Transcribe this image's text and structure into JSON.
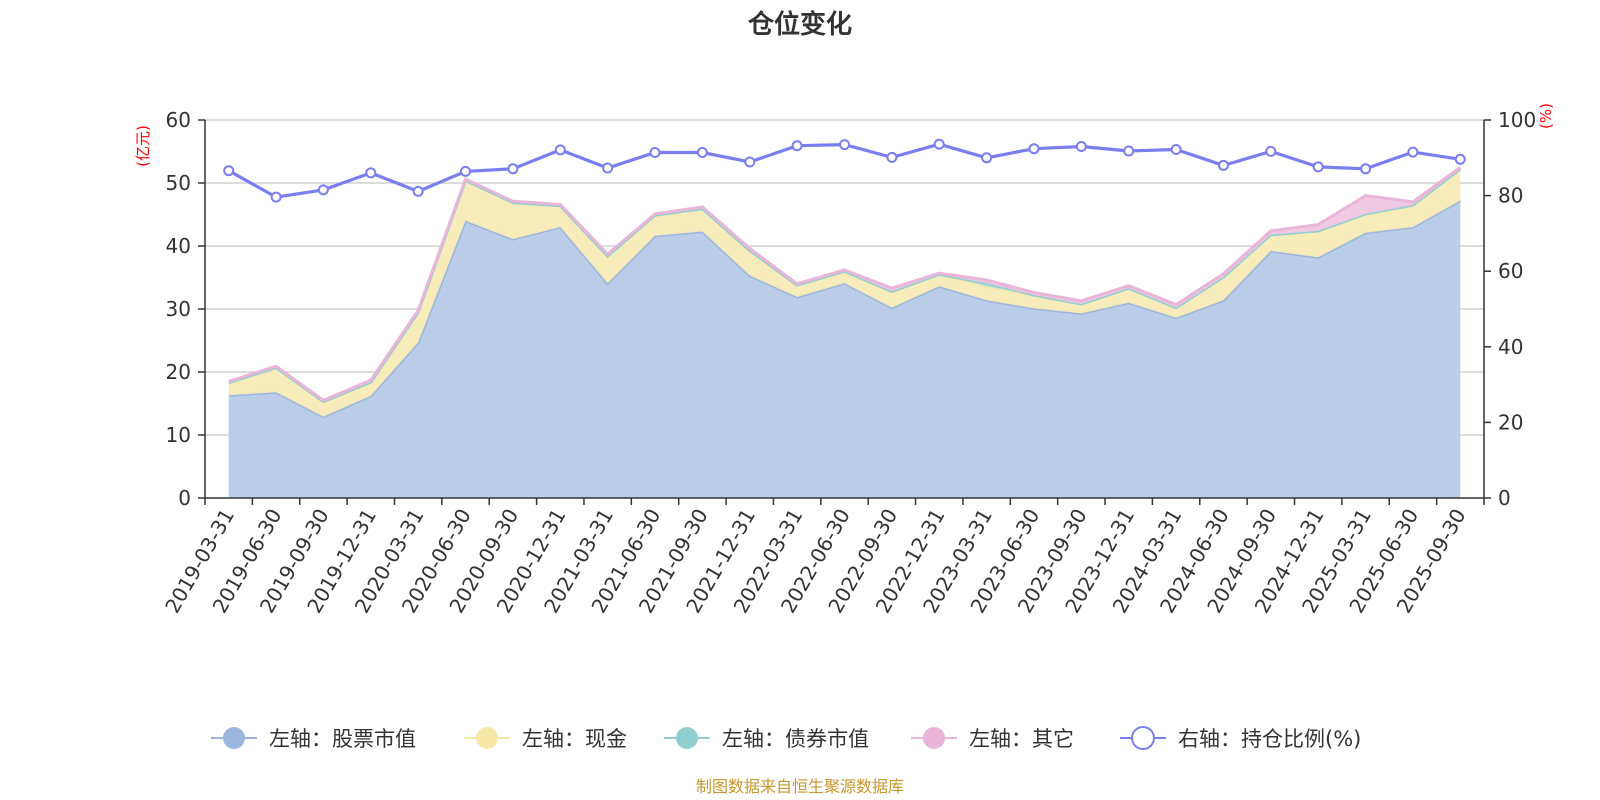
{
  "chart_data": {
    "type": "area",
    "title": "仓位变化",
    "left_axis": {
      "unit": "(亿元)",
      "ylim": [
        0,
        60
      ],
      "ticks": [
        "0",
        "10",
        "20",
        "30",
        "40",
        "50",
        "60"
      ]
    },
    "right_axis": {
      "unit": "(%)",
      "ylim": [
        0,
        100
      ],
      "ticks": [
        "0",
        "20",
        "40",
        "60",
        "80",
        "100"
      ]
    },
    "x": [
      "2019-03-31",
      "2019-06-30",
      "2019-09-30",
      "2019-12-31",
      "2020-03-31",
      "2020-06-30",
      "2020-09-30",
      "2020-12-31",
      "2021-03-31",
      "2021-06-30",
      "2021-09-30",
      "2021-12-31",
      "2022-03-31",
      "2022-06-30",
      "2022-09-30",
      "2022-12-31",
      "2023-03-31",
      "2023-06-30",
      "2023-09-30",
      "2023-12-31",
      "2024-03-31",
      "2024-06-30",
      "2024-09-30",
      "2024-12-31",
      "2025-03-31",
      "2025-06-30",
      "2025-09-30"
    ],
    "grid": true,
    "legend_position": "bottom",
    "series": [
      {
        "name": "左轴：股票市值",
        "axis": "left",
        "kind": "area",
        "color": "#9bb5de",
        "fill": "#b7cbe8",
        "values": [
          16.3,
          16.8,
          12.9,
          16.2,
          24.7,
          44.0,
          41.1,
          43.0,
          34.1,
          41.6,
          42.3,
          35.3,
          31.9,
          34.1,
          30.2,
          33.6,
          31.4,
          30.1,
          29.3,
          31.0,
          28.6,
          31.4,
          39.2,
          38.2,
          42.1,
          43.0,
          47.2
        ]
      },
      {
        "name": "左轴：现金",
        "axis": "left",
        "kind": "area",
        "color": "#f6e7a6",
        "fill": "#f8ebb7",
        "values": [
          2.0,
          3.9,
          2.4,
          2.2,
          4.8,
          6.4,
          5.8,
          3.4,
          4.3,
          3.3,
          3.6,
          4.0,
          1.9,
          1.9,
          2.6,
          1.9,
          2.2,
          2.1,
          1.5,
          2.3,
          1.6,
          3.7,
          2.6,
          4.2,
          3.0,
          3.5,
          5.0
        ]
      },
      {
        "name": "左轴：债券市值",
        "axis": "left",
        "kind": "area",
        "color": "#8fcfcf",
        "fill": "#a9dcdc",
        "values": [
          0,
          0,
          0,
          0,
          0,
          0,
          0,
          0,
          0,
          0,
          0,
          0,
          0,
          0,
          0,
          0,
          0.5,
          0,
          0,
          0,
          0,
          0,
          0,
          0,
          0,
          0,
          0
        ]
      },
      {
        "name": "左轴：其它",
        "axis": "left",
        "kind": "area",
        "color": "#e9b5d8",
        "fill": "#efc7e1",
        "values": [
          0.2,
          0.2,
          0.2,
          0.3,
          0.3,
          0.2,
          0.2,
          0.2,
          0.3,
          0.2,
          0.3,
          0.3,
          0.2,
          0.2,
          0.5,
          0.2,
          0.5,
          0.4,
          0.5,
          0.4,
          0.5,
          0.5,
          0.6,
          1.0,
          2.9,
          0.5,
          0.3
        ]
      },
      {
        "name": "右轴：持仓比例(%)",
        "axis": "right",
        "kind": "line",
        "color": "#7a7ef0",
        "values": [
          86.6,
          79.6,
          81.5,
          86.0,
          81.1,
          86.4,
          87.1,
          92.1,
          87.3,
          91.4,
          91.4,
          88.9,
          93.2,
          93.5,
          90.1,
          93.6,
          90.0,
          92.4,
          93.0,
          91.8,
          92.2,
          88.0,
          91.7,
          87.6,
          87.1,
          91.5,
          89.6
        ]
      }
    ]
  },
  "footer": {
    "source": "制图数据来自恒生聚源数据库"
  }
}
